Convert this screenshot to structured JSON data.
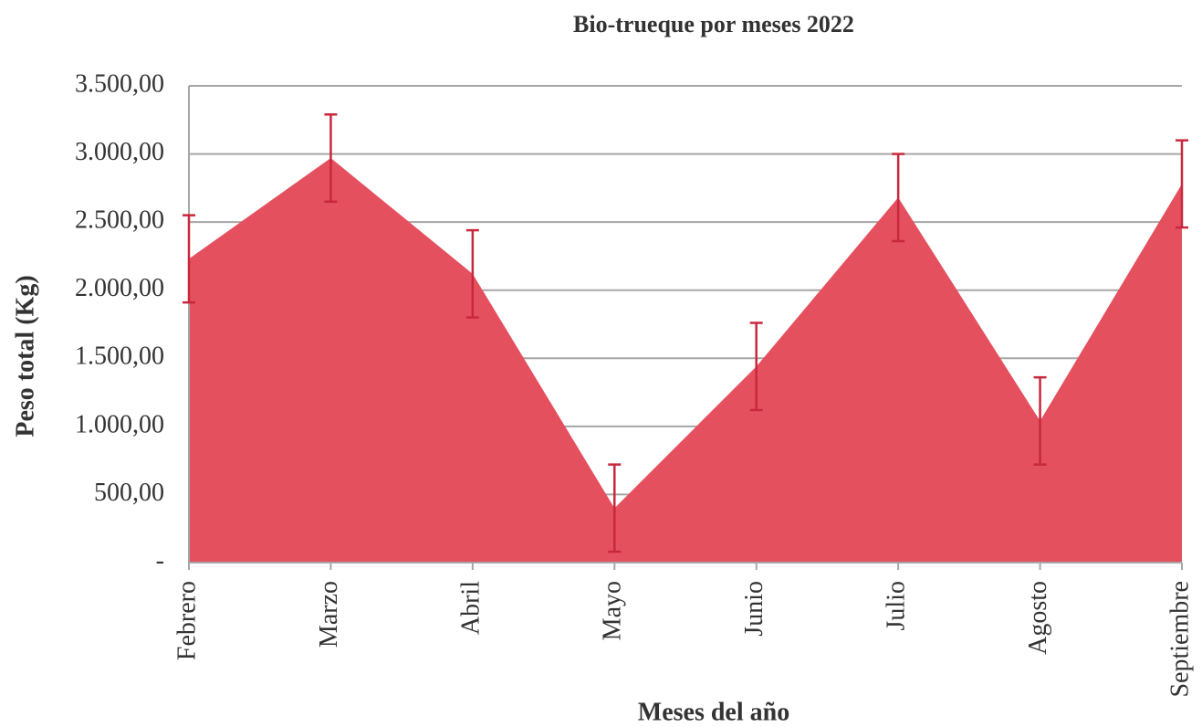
{
  "chart_data": {
    "type": "area",
    "title": "Bio-trueque por meses 2022",
    "x_label": "Meses del año",
    "y_label": "Peso total (Kg)",
    "categories": [
      "Febrero",
      "Marzo",
      "Abril",
      "Mayo",
      "Junio",
      "Julio",
      "Agosto",
      "Septiembre"
    ],
    "values": [
      2230,
      2970,
      2120,
      400,
      1440,
      2680,
      1040,
      2780
    ],
    "errors": [
      320,
      320,
      320,
      320,
      320,
      320,
      320,
      320
    ],
    "color": "#e5505f",
    "error_color": "#c8283c",
    "ylim": [
      0,
      3500
    ],
    "yticks": [
      {
        "value": 0,
        "label": "-"
      },
      {
        "value": 500,
        "label": "500,00"
      },
      {
        "value": 1000,
        "label": "1.000,00"
      },
      {
        "value": 1500,
        "label": "1.500,00"
      },
      {
        "value": 2000,
        "label": "2.000,00"
      },
      {
        "value": 2500,
        "label": "2.500,00"
      },
      {
        "value": 3000,
        "label": "3.000,00"
      },
      {
        "value": 3500,
        "label": "3.500,00"
      }
    ],
    "grid": true
  }
}
